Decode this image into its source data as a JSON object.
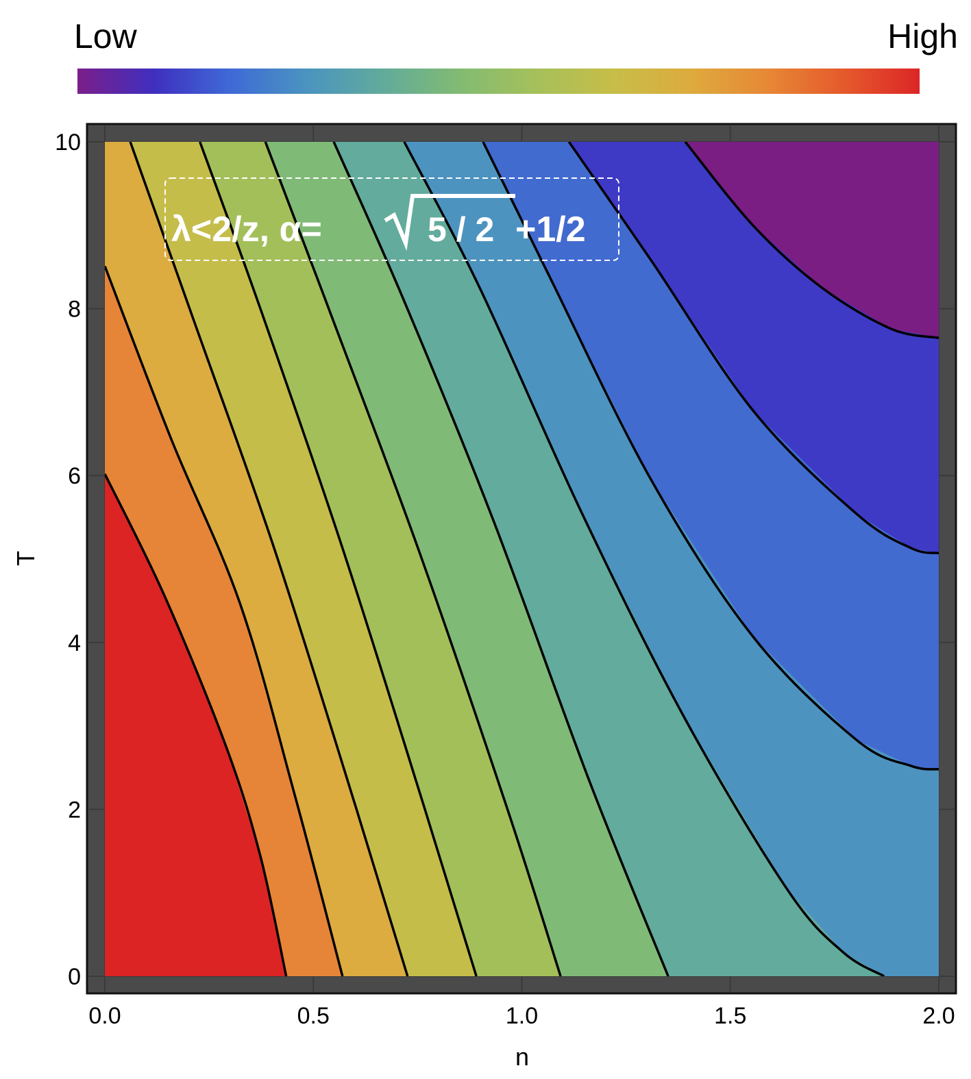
{
  "chart_data": {
    "type": "contour",
    "colorbar": {
      "low": "Low",
      "high": "High",
      "colors": [
        "#7b1f8a",
        "#3f2fbf",
        "#3f6ad6",
        "#4a94c0",
        "#62ab9b",
        "#82bb72",
        "#a6c05a",
        "#c6be48",
        "#ddab3e",
        "#e78836",
        "#e55a2c",
        "#dc2626"
      ]
    },
    "annotation": {
      "left": "λ<2/z, α=",
      "radicand": "5 / 2",
      "right": "+1/2"
    },
    "xlabel": "n",
    "ylabel": "T",
    "xlim": [
      0,
      2
    ],
    "ylim": [
      0,
      10
    ],
    "xticks": [
      {
        "value": 0,
        "label": "0.0"
      },
      0.5,
      {
        "value": 1,
        "label": "1.0"
      },
      1.5,
      {
        "value": 2,
        "label": "2.0"
      }
    ],
    "yticks": [
      0,
      2,
      4,
      6,
      8,
      10
    ],
    "grid": true,
    "region_colors": [
      "#dc2424",
      "#e68537",
      "#dcac40",
      "#c5bd4a",
      "#a3bf5a",
      "#80ba77",
      "#63ab9d",
      "#4d93c0",
      "#426bd0",
      "#3e3ac5",
      "#7a1e84"
    ],
    "series": [
      {
        "x": [
          0,
          0.143,
          0.291,
          0.373,
          0.435
        ],
        "values": [
          6.02,
          4.56,
          2.75,
          1.44,
          0
        ]
      },
      {
        "x": [
          0,
          0.159,
          0.324,
          0.455,
          0.57
        ],
        "values": [
          8.51,
          6.44,
          4.47,
          2.18,
          0
        ]
      },
      {
        "x": [
          0.061,
          0.209,
          0.406,
          0.603,
          0.726
        ],
        "values": [
          10,
          7.92,
          5.13,
          2.01,
          0
        ]
      },
      {
        "x": [
          0.228,
          0.373,
          0.57,
          0.767,
          0.891
        ],
        "values": [
          10,
          8.0,
          5.13,
          2.01,
          0
        ]
      },
      {
        "x": [
          0.385,
          0.537,
          0.751,
          0.965,
          1.093
        ],
        "values": [
          10,
          8.0,
          5.13,
          2.01,
          0
        ]
      },
      {
        "x": [
          0.549,
          0.718,
          0.932,
          1.162,
          1.351
        ],
        "values": [
          10,
          8.09,
          5.46,
          2.34,
          0
        ]
      },
      {
        "x": [
          0.718,
          0.899,
          1.145,
          1.392,
          1.638,
          1.77,
          1.869
        ],
        "values": [
          10,
          8.25,
          5.54,
          3.08,
          1.03,
          0.29,
          0
        ]
      },
      {
        "x": [
          0.907,
          1.063,
          1.31,
          1.556,
          1.803,
          1.934,
          2
        ],
        "values": [
          10,
          8.42,
          5.95,
          4.06,
          2.83,
          2.52,
          2.48
        ]
      },
      {
        "x": [
          1.113,
          1.31,
          1.556,
          1.803,
          1.934,
          2
        ],
        "values": [
          10,
          8.58,
          6.77,
          5.54,
          5.13,
          5.07
        ]
      },
      {
        "x": [
          1.392,
          1.556,
          1.72,
          1.885,
          2
        ],
        "values": [
          10,
          8.99,
          8.25,
          7.76,
          7.65
        ]
      }
    ]
  }
}
